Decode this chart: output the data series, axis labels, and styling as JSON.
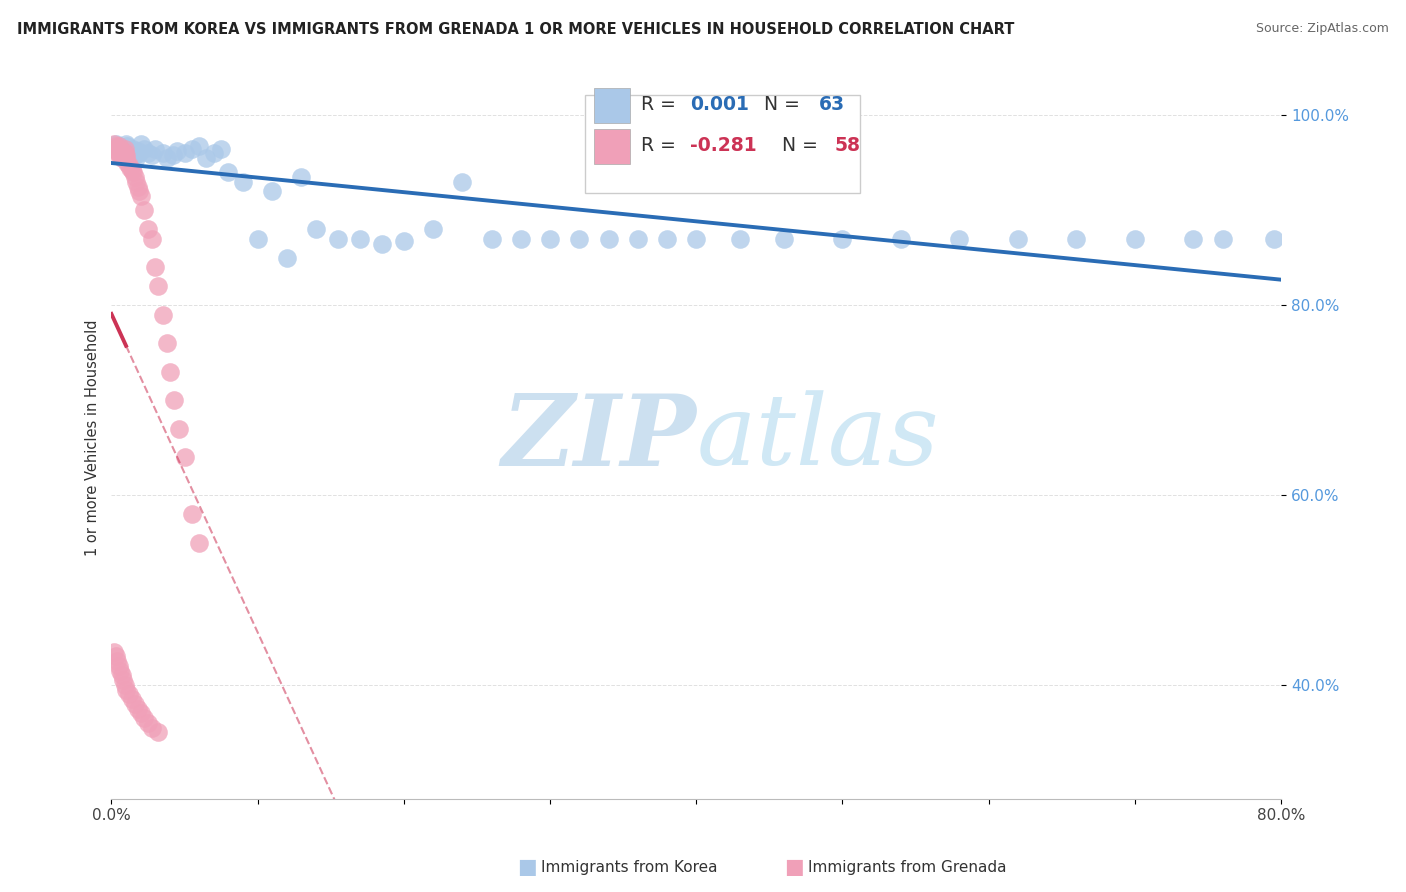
{
  "title": "IMMIGRANTS FROM KOREA VS IMMIGRANTS FROM GRENADA 1 OR MORE VEHICLES IN HOUSEHOLD CORRELATION CHART",
  "source": "Source: ZipAtlas.com",
  "ylabel": "1 or more Vehicles in Household",
  "xlim": [
    0.0,
    0.8
  ],
  "ylim": [
    0.28,
    1.04
  ],
  "xtick_vals": [
    0.0,
    0.1,
    0.2,
    0.3,
    0.4,
    0.5,
    0.6,
    0.7,
    0.8
  ],
  "xticklabels": [
    "0.0%",
    "",
    "",
    "",
    "",
    "",
    "",
    "",
    "80.0%"
  ],
  "ytick_vals": [
    0.4,
    0.6,
    0.8,
    1.0
  ],
  "yticklabels": [
    "40.0%",
    "60.0%",
    "80.0%",
    "100.0%"
  ],
  "korea_R": 0.001,
  "korea_N": 63,
  "grenada_R": -0.281,
  "grenada_N": 58,
  "korea_color": "#aac8e8",
  "grenada_color": "#f0a0b8",
  "korea_line_color": "#2a6cb5",
  "grenada_line_color": "#cc3355",
  "background_color": "#ffffff",
  "watermark_color": "#cce0f0",
  "grid_color": "#dddddd",
  "right_tick_color": "#5599dd",
  "korea_scatter_x": [
    0.003,
    0.005,
    0.006,
    0.007,
    0.008,
    0.009,
    0.01,
    0.011,
    0.012,
    0.013,
    0.014,
    0.015,
    0.016,
    0.017,
    0.018,
    0.019,
    0.02,
    0.022,
    0.025,
    0.028,
    0.03,
    0.035,
    0.038,
    0.042,
    0.045,
    0.05,
    0.055,
    0.06,
    0.065,
    0.07,
    0.075,
    0.08,
    0.09,
    0.1,
    0.11,
    0.12,
    0.13,
    0.14,
    0.155,
    0.17,
    0.185,
    0.2,
    0.22,
    0.24,
    0.26,
    0.28,
    0.3,
    0.32,
    0.34,
    0.36,
    0.38,
    0.4,
    0.43,
    0.46,
    0.5,
    0.54,
    0.58,
    0.62,
    0.66,
    0.7,
    0.74,
    0.76,
    0.795
  ],
  "korea_scatter_y": [
    0.97,
    0.968,
    0.965,
    0.96,
    0.955,
    0.965,
    0.97,
    0.968,
    0.96,
    0.958,
    0.962,
    0.965,
    0.958,
    0.955,
    0.962,
    0.96,
    0.97,
    0.965,
    0.96,
    0.958,
    0.965,
    0.96,
    0.955,
    0.958,
    0.962,
    0.96,
    0.965,
    0.968,
    0.955,
    0.96,
    0.965,
    0.94,
    0.93,
    0.87,
    0.92,
    0.85,
    0.935,
    0.88,
    0.87,
    0.87,
    0.865,
    0.868,
    0.88,
    0.93,
    0.87,
    0.87,
    0.87,
    0.87,
    0.87,
    0.87,
    0.87,
    0.87,
    0.87,
    0.87,
    0.87,
    0.87,
    0.87,
    0.87,
    0.87,
    0.87,
    0.87,
    0.87,
    0.87
  ],
  "grenada_scatter_x": [
    0.002,
    0.003,
    0.003,
    0.004,
    0.004,
    0.005,
    0.005,
    0.006,
    0.006,
    0.007,
    0.007,
    0.008,
    0.008,
    0.009,
    0.009,
    0.01,
    0.01,
    0.011,
    0.012,
    0.013,
    0.014,
    0.015,
    0.016,
    0.017,
    0.018,
    0.019,
    0.02,
    0.022,
    0.025,
    0.028,
    0.03,
    0.032,
    0.035,
    0.038,
    0.04,
    0.043,
    0.046,
    0.05,
    0.055,
    0.06,
    0.002,
    0.003,
    0.004,
    0.005,
    0.006,
    0.007,
    0.008,
    0.009,
    0.01,
    0.012,
    0.014,
    0.016,
    0.018,
    0.02,
    0.022,
    0.025,
    0.028,
    0.032
  ],
  "grenada_scatter_y": [
    0.97,
    0.965,
    0.968,
    0.962,
    0.96,
    0.968,
    0.96,
    0.965,
    0.958,
    0.96,
    0.955,
    0.962,
    0.958,
    0.965,
    0.96,
    0.958,
    0.955,
    0.95,
    0.948,
    0.945,
    0.942,
    0.94,
    0.935,
    0.93,
    0.925,
    0.92,
    0.915,
    0.9,
    0.88,
    0.87,
    0.84,
    0.82,
    0.79,
    0.76,
    0.73,
    0.7,
    0.67,
    0.64,
    0.58,
    0.55,
    0.435,
    0.43,
    0.425,
    0.42,
    0.415,
    0.41,
    0.405,
    0.4,
    0.395,
    0.39,
    0.385,
    0.38,
    0.375,
    0.37,
    0.365,
    0.36,
    0.355,
    0.35
  ],
  "grenada_line_x0": 0.002,
  "grenada_line_x_solid_end": 0.01,
  "grenada_line_x1": 0.55,
  "korea_line_y": 0.933
}
